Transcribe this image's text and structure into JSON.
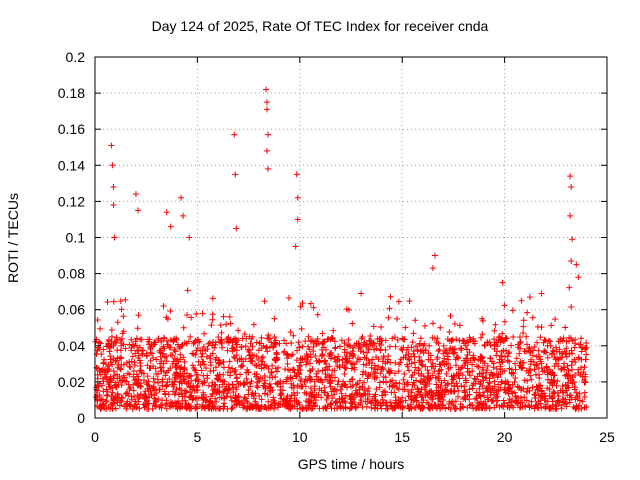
{
  "chart_data": {
    "type": "scatter",
    "title": "Day 124 of 2025, Rate Of TEC Index for receiver cnda",
    "xlabel": "GPS time / hours",
    "ylabel": "ROTI / TECUs",
    "xlim": [
      0,
      25
    ],
    "ylim": [
      0,
      0.2
    ],
    "xticks": [
      0,
      5,
      10,
      15,
      20,
      25
    ],
    "yticks": [
      0,
      0.02,
      0.04,
      0.06,
      0.08,
      0.1,
      0.12,
      0.14,
      0.16,
      0.18,
      0.2
    ],
    "xtick_labels": [
      "0",
      "5",
      "10",
      "15",
      "20",
      "25"
    ],
    "ytick_labels": [
      "0",
      "0.02",
      "0.04",
      "0.06",
      "0.08",
      "0.1",
      "0.12",
      "0.14",
      "0.16",
      "0.18",
      "0.2"
    ],
    "grid": true,
    "marker": "+",
    "color": "#ff0000",
    "series": [
      {
        "name": "ROTI",
        "notable_points": [
          {
            "x": 0.8,
            "y": 0.151
          },
          {
            "x": 0.85,
            "y": 0.14
          },
          {
            "x": 0.9,
            "y": 0.128
          },
          {
            "x": 0.9,
            "y": 0.118
          },
          {
            "x": 0.95,
            "y": 0.1
          },
          {
            "x": 2.0,
            "y": 0.124
          },
          {
            "x": 2.1,
            "y": 0.115
          },
          {
            "x": 3.5,
            "y": 0.114
          },
          {
            "x": 3.7,
            "y": 0.106
          },
          {
            "x": 4.2,
            "y": 0.122
          },
          {
            "x": 4.3,
            "y": 0.112
          },
          {
            "x": 4.6,
            "y": 0.1
          },
          {
            "x": 6.8,
            "y": 0.157
          },
          {
            "x": 6.85,
            "y": 0.135
          },
          {
            "x": 6.9,
            "y": 0.105
          },
          {
            "x": 8.35,
            "y": 0.182
          },
          {
            "x": 8.4,
            "y": 0.175
          },
          {
            "x": 8.4,
            "y": 0.171
          },
          {
            "x": 8.45,
            "y": 0.157
          },
          {
            "x": 8.4,
            "y": 0.148
          },
          {
            "x": 8.45,
            "y": 0.138
          },
          {
            "x": 9.85,
            "y": 0.135
          },
          {
            "x": 9.9,
            "y": 0.122
          },
          {
            "x": 9.9,
            "y": 0.11
          },
          {
            "x": 9.8,
            "y": 0.095
          },
          {
            "x": 16.6,
            "y": 0.09
          },
          {
            "x": 16.5,
            "y": 0.083
          },
          {
            "x": 19.9,
            "y": 0.075
          },
          {
            "x": 21.8,
            "y": 0.069
          },
          {
            "x": 23.2,
            "y": 0.134
          },
          {
            "x": 23.25,
            "y": 0.128
          },
          {
            "x": 23.2,
            "y": 0.112
          },
          {
            "x": 23.3,
            "y": 0.099
          },
          {
            "x": 23.25,
            "y": 0.087
          },
          {
            "x": 23.5,
            "y": 0.085
          },
          {
            "x": 23.6,
            "y": 0.078
          }
        ],
        "baseline_band": {
          "x_range": [
            0,
            24
          ],
          "y_typical": [
            0.005,
            0.045
          ]
        }
      }
    ]
  }
}
